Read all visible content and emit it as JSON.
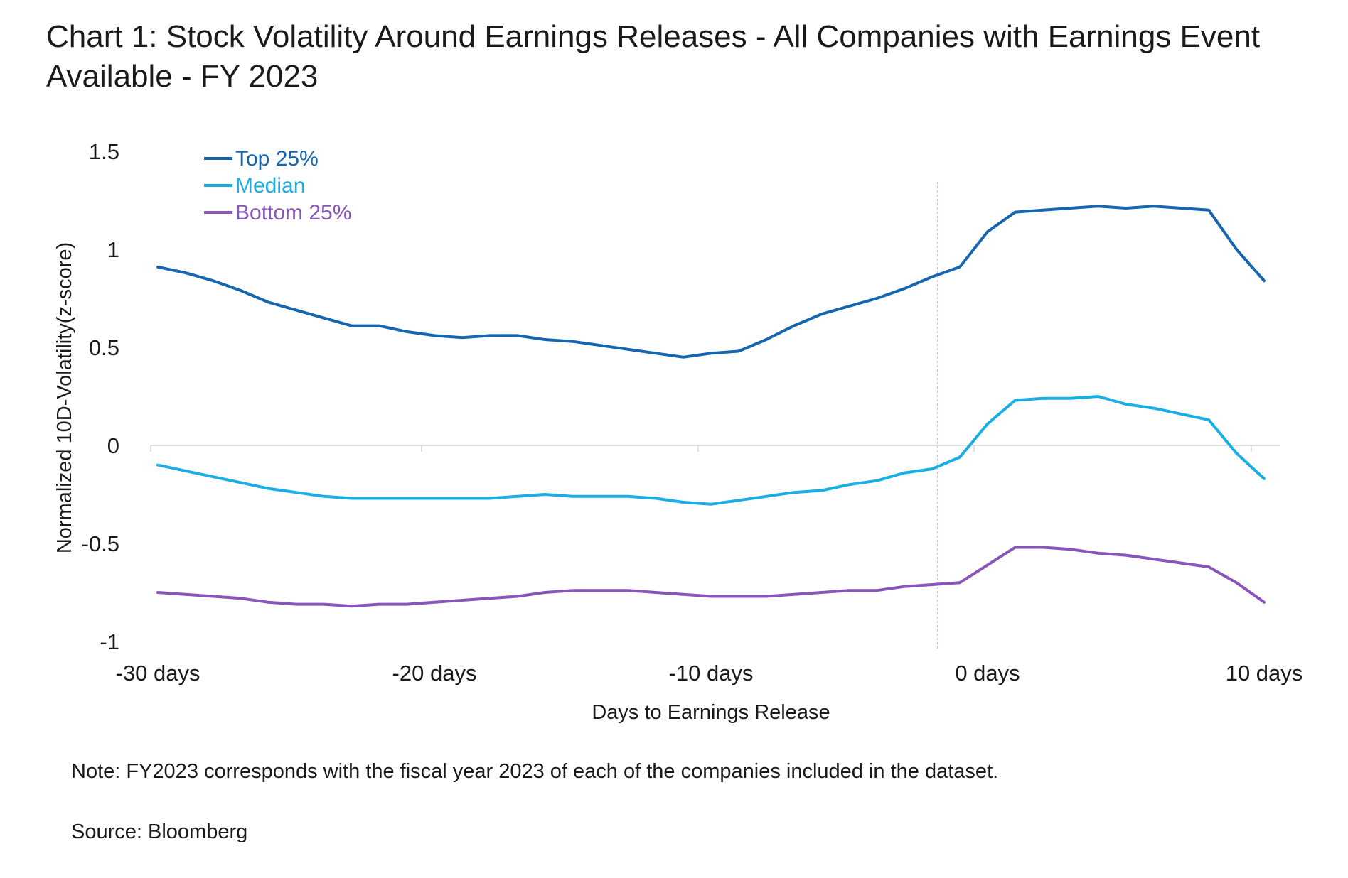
{
  "chart_data": {
    "type": "line",
    "title": "Chart 1: Stock Volatility Around Earnings Releases - All Companies with Earnings Event Available - FY 2023",
    "xlabel": "Days to Earnings Release",
    "ylabel": "Normalized 10D-Volatility(z-score)",
    "ylim": [
      -1,
      1.5
    ],
    "xlim": [
      -30,
      10
    ],
    "yticks": [
      {
        "value": 1.5,
        "label": "1.5"
      },
      {
        "value": 1,
        "label": "1"
      },
      {
        "value": 0.5,
        "label": "0.5"
      },
      {
        "value": 0,
        "label": "0"
      },
      {
        "value": -0.5,
        "label": "-0.5"
      },
      {
        "value": -1,
        "label": "-1"
      }
    ],
    "xticks": [
      {
        "value": -30,
        "label": "-30 days"
      },
      {
        "value": -20,
        "label": "-20 days"
      },
      {
        "value": -10,
        "label": "-10 days"
      },
      {
        "value": 0,
        "label": "0 days"
      },
      {
        "value": 10,
        "label": "10 days"
      }
    ],
    "reference_line_x": -1.8,
    "x": [
      -30,
      -29,
      -28,
      -27,
      -26,
      -25,
      -24,
      -23,
      -22,
      -21,
      -20,
      -19,
      -18,
      -17,
      -16,
      -15,
      -14,
      -13,
      -12,
      -11,
      -10,
      -9,
      -8,
      -7,
      -6,
      -5,
      -4,
      -3,
      -2,
      -1,
      0,
      1,
      2,
      3,
      4,
      5,
      6,
      7,
      8,
      9,
      10
    ],
    "series": [
      {
        "name": "Top 25%",
        "color": "#1565b0",
        "values": [
          0.91,
          0.88,
          0.84,
          0.79,
          0.73,
          0.69,
          0.65,
          0.61,
          0.61,
          0.58,
          0.56,
          0.55,
          0.56,
          0.56,
          0.54,
          0.53,
          0.51,
          0.49,
          0.47,
          0.45,
          0.47,
          0.48,
          0.54,
          0.61,
          0.67,
          0.71,
          0.75,
          0.8,
          0.86,
          0.91,
          1.09,
          1.19,
          1.2,
          1.21,
          1.22,
          1.21,
          1.22,
          1.21,
          1.2,
          1.0,
          0.84
        ]
      },
      {
        "name": "Median",
        "color": "#1aaee6",
        "values": [
          -0.1,
          -0.13,
          -0.16,
          -0.19,
          -0.22,
          -0.24,
          -0.26,
          -0.27,
          -0.27,
          -0.27,
          -0.27,
          -0.27,
          -0.27,
          -0.26,
          -0.25,
          -0.26,
          -0.26,
          -0.26,
          -0.27,
          -0.29,
          -0.3,
          -0.28,
          -0.26,
          -0.24,
          -0.23,
          -0.2,
          -0.18,
          -0.14,
          -0.12,
          -0.06,
          0.11,
          0.23,
          0.24,
          0.24,
          0.25,
          0.21,
          0.19,
          0.16,
          0.13,
          -0.04,
          -0.17
        ]
      },
      {
        "name": "Bottom 25%",
        "color": "#8a55b8",
        "values": [
          -0.75,
          -0.76,
          -0.77,
          -0.78,
          -0.8,
          -0.81,
          -0.81,
          -0.82,
          -0.81,
          -0.81,
          -0.8,
          -0.79,
          -0.78,
          -0.77,
          -0.75,
          -0.74,
          -0.74,
          -0.74,
          -0.75,
          -0.76,
          -0.77,
          -0.77,
          -0.77,
          -0.76,
          -0.75,
          -0.74,
          -0.74,
          -0.72,
          -0.71,
          -0.7,
          -0.61,
          -0.52,
          -0.52,
          -0.53,
          -0.55,
          -0.56,
          -0.58,
          -0.6,
          -0.62,
          -0.7,
          -0.8
        ]
      }
    ],
    "legend": [
      "Top 25%",
      "Median",
      "Bottom 25%"
    ],
    "legend_position": "top-left",
    "grid": false
  },
  "footer": {
    "note": "Note: FY2023 corresponds with the fiscal year 2023 of each of the companies included in the dataset.",
    "source": "Source: Bloomberg"
  }
}
